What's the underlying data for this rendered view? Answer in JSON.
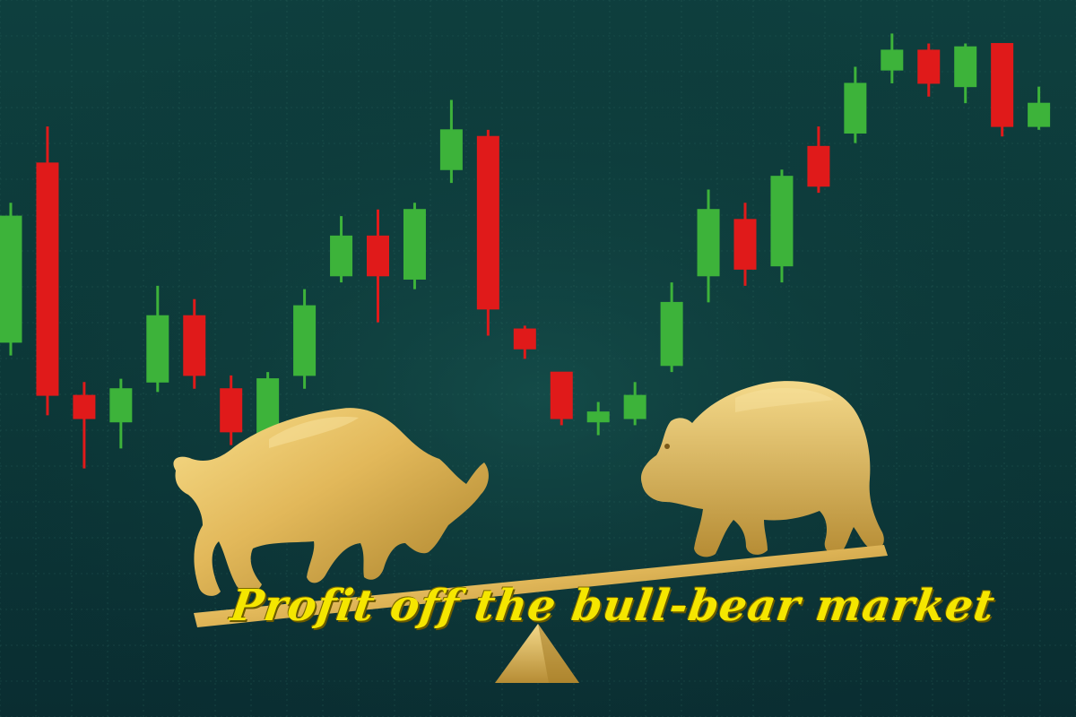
{
  "caption": "Profit off the bull-bear market",
  "colors": {
    "background_top": "#0e3f3e",
    "background_bottom": "#0a2d31",
    "grid": "#2f6a62",
    "candle_bull": "#3db33a",
    "candle_bear": "#e01a1a",
    "gold_light": "#f2d27a",
    "gold_dark": "#a9812a",
    "caption_text": "#f5e600"
  },
  "chart_data": {
    "type": "candlestick",
    "candles": [
      {
        "dir": "bull",
        "open": 30,
        "close": 68,
        "high": 72,
        "low": 26
      },
      {
        "dir": "bear",
        "open": 84,
        "close": 14,
        "high": 95,
        "low": 8
      },
      {
        "dir": "bear",
        "open": 14,
        "close": 7,
        "high": 18,
        "low": -8
      },
      {
        "dir": "bull",
        "open": 6,
        "close": 16,
        "high": 19,
        "low": -2
      },
      {
        "dir": "bull",
        "open": 18,
        "close": 38,
        "high": 47,
        "low": 15
      },
      {
        "dir": "bear",
        "open": 38,
        "close": 20,
        "high": 43,
        "low": 16
      },
      {
        "dir": "bear",
        "open": 16,
        "close": 3,
        "high": 20,
        "low": -1
      },
      {
        "dir": "bull",
        "open": 2,
        "close": 19,
        "high": 21,
        "low": 0
      },
      {
        "dir": "bull",
        "open": 20,
        "close": 41,
        "high": 46,
        "low": 16
      },
      {
        "dir": "bull",
        "open": 50,
        "close": 62,
        "high": 68,
        "low": 48
      },
      {
        "dir": "bear",
        "open": 62,
        "close": 50,
        "high": 70,
        "low": 36
      },
      {
        "dir": "bull",
        "open": 49,
        "close": 70,
        "high": 72,
        "low": 46
      },
      {
        "dir": "bull",
        "open": 82,
        "close": 94,
        "high": 103,
        "low": 78
      },
      {
        "dir": "bear",
        "open": 92,
        "close": 40,
        "high": 94,
        "low": 32
      },
      {
        "dir": "bear",
        "open": 34,
        "close": 28,
        "high": 35,
        "low": 25
      },
      {
        "dir": "bear",
        "open": 21,
        "close": 7,
        "high": 21,
        "low": 5
      },
      {
        "dir": "bull",
        "open": 6,
        "close": 9,
        "high": 12,
        "low": 2
      },
      {
        "dir": "bull",
        "open": 7,
        "close": 14,
        "high": 18,
        "low": 5
      },
      {
        "dir": "bull",
        "open": 23,
        "close": 42,
        "high": 48,
        "low": 21
      },
      {
        "dir": "bull",
        "open": 50,
        "close": 70,
        "high": 76,
        "low": 42
      },
      {
        "dir": "bear",
        "open": 67,
        "close": 52,
        "high": 72,
        "low": 47
      },
      {
        "dir": "bull",
        "open": 53,
        "close": 80,
        "high": 82,
        "low": 48
      },
      {
        "dir": "bear",
        "open": 89,
        "close": 77,
        "high": 95,
        "low": 75
      },
      {
        "dir": "bull",
        "open": 93,
        "close": 108,
        "high": 113,
        "low": 90
      },
      {
        "dir": "bull",
        "open": 112,
        "close": 118,
        "high": 123,
        "low": 108
      },
      {
        "dir": "bear",
        "open": 118,
        "close": 108,
        "high": 120,
        "low": 104
      },
      {
        "dir": "bull",
        "open": 107,
        "close": 119,
        "high": 120,
        "low": 102
      },
      {
        "dir": "bear",
        "open": 120,
        "close": 95,
        "high": 120,
        "low": 92
      },
      {
        "dir": "bull",
        "open": 95,
        "close": 102,
        "high": 107,
        "low": 94
      }
    ]
  }
}
